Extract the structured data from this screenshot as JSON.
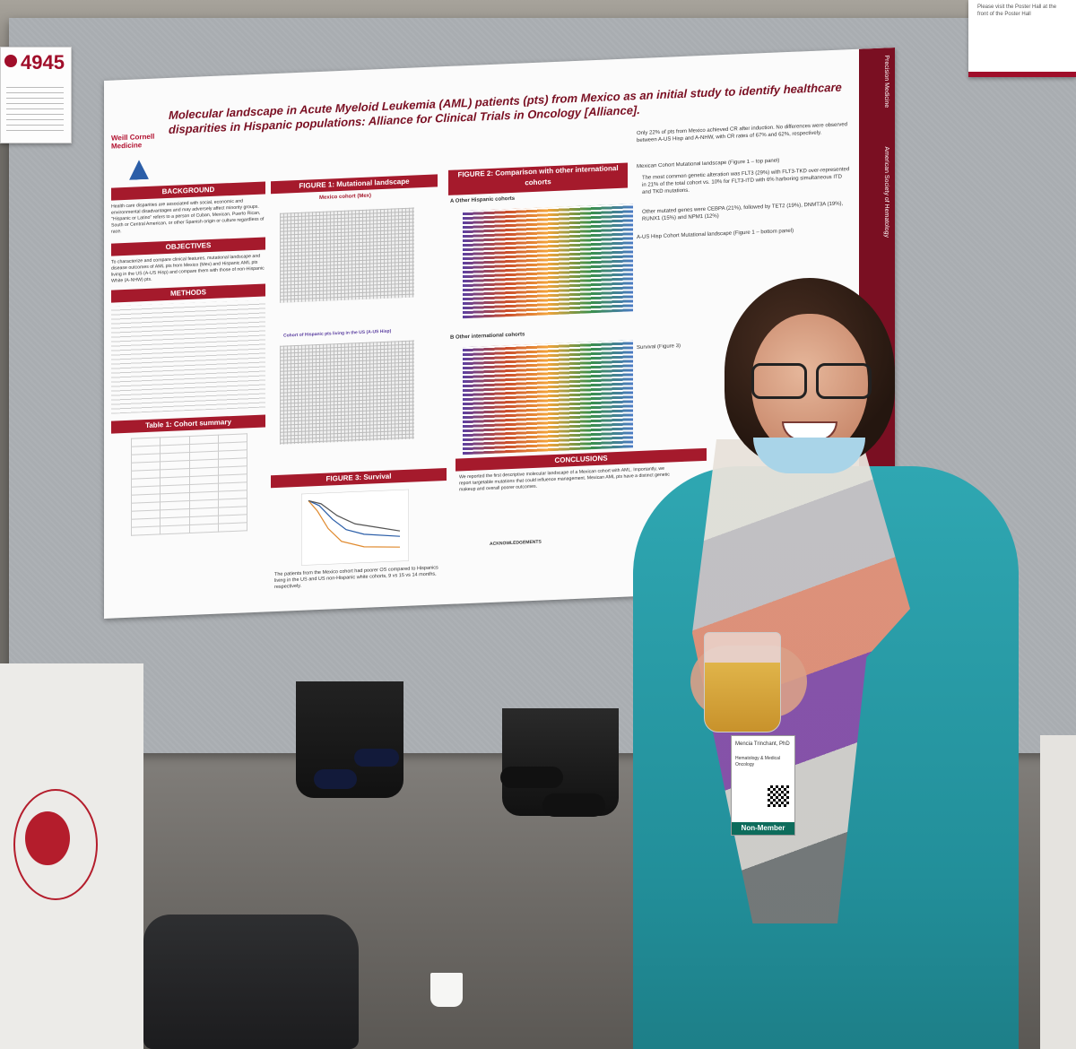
{
  "scene": {
    "poster_number": "4945",
    "info_card_text": "Please visit the Poster Hall at the front of the Poster Hall"
  },
  "poster": {
    "title": "Molecular landscape in Acute Myeloid Leukemia (AML) patients (pts) from Mexico as an initial study to identify healthcare disparities in Hispanic populations: Alliance for Clinical Trials in Oncology [Alliance].",
    "institution_logo": "Weill Cornell Medicine",
    "sidebar_logo_1": "Precision Medicine",
    "sidebar_logo_2": "American Society of Hematology",
    "sections": {
      "background": "BACKGROUND",
      "objectives": "OBJECTIVES",
      "methods": "METHODS",
      "table1": "Table 1: Cohort summary",
      "figure1": "FIGURE 1: Mutational landscape",
      "figure1_top": "Mexico cohort (Mex)",
      "figure1_bottom": "Cohort of Hispanic pts living in the US (A-US Hisp)",
      "figure2": "FIGURE 2: Comparison with other international cohorts",
      "figure2_a": "A Other Hispanic cohorts",
      "figure2_b": "B Other international cohorts",
      "figure3": "FIGURE 3: Survival",
      "conclusions": "CONCLUSIONS",
      "acknowledgements": "ACKNOWLEDGEMENTS"
    },
    "background_text": "Health care disparities are associated with social, economic and environmental disadvantages and may adversely affect minority groups. \"Hispanic or Latino\" refers to a person of Cuban, Mexican, Puerto Rican, South or Central American, or other Spanish origin or culture regardless of race.",
    "objectives_text": "To characterize and compare clinical features, mutational landscape and disease outcomes of AML pts from Mexico (Mex) and Hispanic AML pts living in the US (A-US Hisp) and compare them with those of non-Hispanic White (A-NHW) pts.",
    "right_column": [
      "Only 22% of pts from Mexico achieved CR after induction. No differences were observed between A-US Hisp and A-NHW, with CR rates of 67% and 62%, respectively.",
      "Mexican Cohort Mutational landscape (Figure 1 – top panel)",
      "The most common genetic alteration was FLT3 (29%) with FLT3-TKD over-represented in 21% of the total cohort vs. 10% for FLT3-ITD with 6% harboring simultaneous ITD and TKD mutations.",
      "Other mutated genes were CEBPA (21%), followed by TET2 (19%), DNMT3A (19%), RUNX1 (15%) and NPM1 (12%)",
      "A-US Hisp Cohort Mutational landscape (Figure 1 – bottom panel)",
      "Survival (Figure 3)"
    ],
    "figure3_caption": "The patients from the Mexico cohort had poorer OS compared to Hispanics living in the US and US non-Hispanic white cohorts, 9 vs 15 vs 14 months, respectively.",
    "conclusions_text": "We reported the first descriptive molecular landscape of a Mexican cohort with AML. Importantly, we report targetable mutations that could influence management. Mexican AML pts have a distinct genetic makeup and overall poorer outcomes."
  },
  "person": {
    "badge_name": "Mencia Trinchant, PhD",
    "badge_dept": "Hematology & Medical Oncology",
    "badge_type": "Non-Member"
  },
  "colors": {
    "poster_accent": "#a51a2c",
    "shirt": "#2fa7b2",
    "badge_footer": "#0d6c5c"
  },
  "icons": [
    "ash-logo-icon",
    "qr-code-icon"
  ]
}
